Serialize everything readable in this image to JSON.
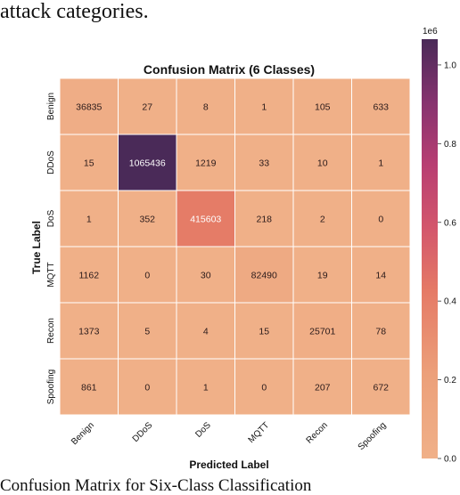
{
  "page": {
    "top_text": "attack categories.",
    "bottom_caption": "Confusion Matrix for Six-Class Classification"
  },
  "chart_data": {
    "type": "heatmap",
    "title": "Confusion Matrix (6 Classes)",
    "xlabel": "Predicted Label",
    "ylabel": "True Label",
    "row_labels": [
      "Benign",
      "DDoS",
      "DoS",
      "MQTT",
      "Recon",
      "Spoofing"
    ],
    "col_labels": [
      "Benign",
      "DDoS",
      "DoS",
      "MQTT",
      "Recon",
      "Spoofing"
    ],
    "values": [
      [
        36835,
        27,
        8,
        1,
        105,
        633
      ],
      [
        15,
        1065436,
        1219,
        33,
        10,
        1
      ],
      [
        1,
        352,
        415603,
        218,
        2,
        0
      ],
      [
        1162,
        0,
        30,
        82490,
        19,
        14
      ],
      [
        1373,
        5,
        4,
        15,
        25701,
        78
      ],
      [
        861,
        0,
        1,
        0,
        207,
        672
      ]
    ],
    "colorbar": {
      "min": 0,
      "max": 1065436,
      "ticks": [
        0.0,
        0.2,
        0.4,
        0.6,
        0.8,
        1.0
      ],
      "tick_labels": [
        "0.0",
        "0.2",
        "0.4",
        "0.6",
        "0.8",
        "1.0"
      ],
      "scale_label": "1e6",
      "colormap": "flare",
      "low_color": "#f0b088",
      "high_color": "#4a2a58"
    },
    "grid": true
  }
}
